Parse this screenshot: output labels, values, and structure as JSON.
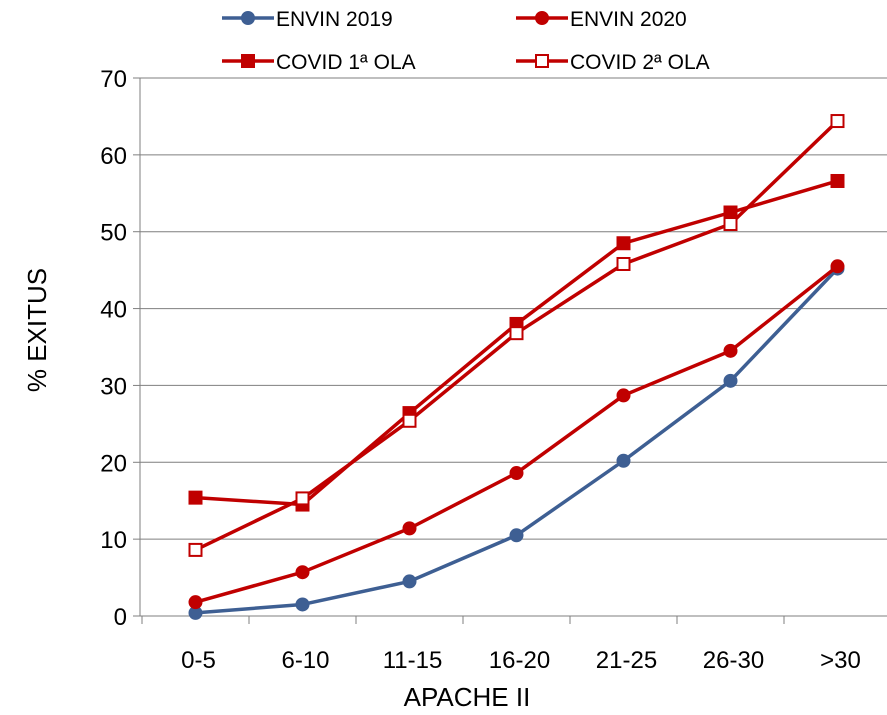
{
  "chart_data": {
    "type": "line",
    "title": "",
    "xlabel": "APACHE II",
    "ylabel": "% EXITUS",
    "categories": [
      "0-5",
      "6-10",
      "11-15",
      "16-20",
      "21-25",
      "26-30",
      ">30"
    ],
    "ylim": [
      0,
      70
    ],
    "yticks": [
      0,
      10,
      20,
      30,
      40,
      50,
      60,
      70
    ],
    "grid": true,
    "legend_position": "top",
    "series": [
      {
        "name": "ENVIN 2019",
        "color": "#3e5f93",
        "marker": "circle",
        "values": [
          0.4,
          1.5,
          4.5,
          10.5,
          20.2,
          30.6,
          45.2
        ]
      },
      {
        "name": "ENVIN 2020",
        "color": "#c00000",
        "marker": "circle",
        "values": [
          1.8,
          5.7,
          11.4,
          18.6,
          28.7,
          34.5,
          45.5
        ]
      },
      {
        "name": "COVID 1ª OLA",
        "color": "#c00000",
        "marker": "square-filled",
        "values": [
          15.4,
          14.5,
          26.4,
          38.0,
          48.5,
          52.5,
          56.6
        ]
      },
      {
        "name": "COVID 2ª OLA",
        "color": "#c00000",
        "marker": "square-open",
        "values": [
          8.6,
          15.3,
          25.4,
          36.8,
          45.8,
          51.0,
          64.4
        ]
      }
    ]
  }
}
